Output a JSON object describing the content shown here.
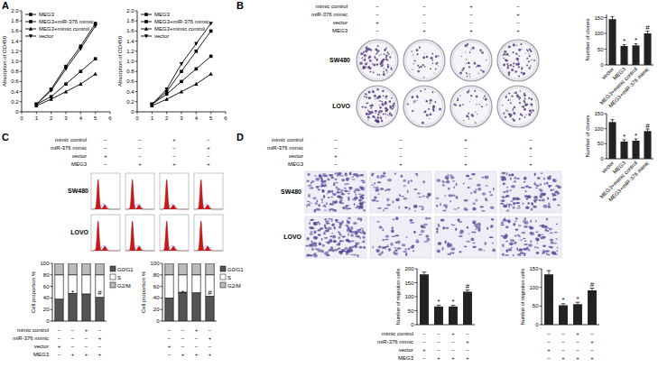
{
  "figure": {
    "panel_labels": [
      "A",
      "B",
      "C",
      "D"
    ],
    "cell_lines": [
      "SW480",
      "LOVO"
    ],
    "conditions": {
      "rows": [
        "mimic control",
        "miR-376 mimic",
        "vector",
        "MEG3"
      ],
      "cells": [
        [
          "−",
          "−",
          "+",
          "−"
        ],
        [
          "−",
          "−",
          "−",
          "+"
        ],
        [
          "+",
          "−",
          "−",
          "−"
        ],
        [
          "−",
          "+",
          "+",
          "+"
        ]
      ]
    }
  },
  "chart_data": [
    {
      "type": "line",
      "x": [
        1,
        2,
        3,
        4,
        5
      ],
      "xlim": [
        0,
        6
      ],
      "xticks": [
        0,
        1,
        2,
        3,
        4,
        5,
        6
      ],
      "ylim": [
        0,
        2
      ],
      "yticks": [
        0,
        0.2,
        0.4,
        0.6,
        0.8,
        {
          "value": 1,
          "label": "1.0"
        },
        1.2,
        1.4,
        1.6,
        1.8,
        {
          "value": 2,
          "label": "2.0"
        }
      ],
      "y_label": "Absorption of OD450",
      "legend": "upper left",
      "series": [
        {
          "name": "MEG3",
          "color": "#000000",
          "marker": "square",
          "values": [
            0.15,
            0.3,
            0.55,
            0.8,
            1.05
          ]
        },
        {
          "name": "MEG3+miR-376 mimic",
          "color": "#000000",
          "marker": "square",
          "values": [
            0.15,
            0.45,
            0.9,
            1.3,
            1.75
          ]
        },
        {
          "name": "MEG3+mimic control",
          "color": "#000000",
          "marker": "triangle",
          "values": [
            0.12,
            0.25,
            0.4,
            0.55,
            0.75
          ]
        },
        {
          "name": "vector",
          "color": "#000000",
          "marker": "triangle-down",
          "values": [
            0.15,
            0.42,
            0.85,
            1.25,
            1.7
          ]
        }
      ]
    },
    {
      "type": "line",
      "x": [
        1,
        2,
        3,
        4,
        5
      ],
      "xlim": [
        0,
        6
      ],
      "xticks": [
        0,
        1,
        2,
        3,
        4,
        5,
        6
      ],
      "ylim": [
        0,
        2
      ],
      "yticks": [
        0,
        0.2,
        0.4,
        0.6,
        0.8,
        {
          "value": 1,
          "label": "1.0"
        },
        1.2,
        1.4,
        1.6,
        1.8,
        {
          "value": 2,
          "label": "2.0"
        }
      ],
      "y_label": "Absorption of OD450",
      "legend": "upper left",
      "series": [
        {
          "name": "MEG3",
          "color": "#000000",
          "marker": "square",
          "values": [
            0.15,
            0.35,
            0.6,
            0.85,
            1.1
          ]
        },
        {
          "name": "MEG3+miR-376 mimic",
          "color": "#000000",
          "marker": "square",
          "values": [
            0.15,
            0.4,
            0.8,
            1.2,
            1.6
          ]
        },
        {
          "name": "MEG3+mimic control",
          "color": "#000000",
          "marker": "triangle",
          "values": [
            0.12,
            0.25,
            0.4,
            0.55,
            0.75
          ]
        },
        {
          "name": "vector",
          "color": "#000000",
          "marker": "triangle-down",
          "values": [
            0.15,
            0.45,
            0.95,
            1.35,
            1.75
          ]
        }
      ]
    },
    {
      "type": "bar",
      "categories": [
        "vector",
        "MEG3",
        "MEG3+mimic control",
        "MEG3+miR-376 mimic"
      ],
      "values": [
        145,
        60,
        62,
        100
      ],
      "errors": [
        8,
        4,
        5,
        7
      ],
      "annotations": [
        null,
        "*",
        "*",
        "#"
      ],
      "color": "#222222",
      "ylim": [
        0,
        160
      ],
      "yticks": [
        0,
        50,
        100,
        150
      ],
      "y_label": "Number of clones"
    },
    {
      "type": "bar",
      "categories": [
        "vector",
        "MEG3",
        "MEG3+mimic control",
        "MEG3+miR-376 mimic"
      ],
      "values": [
        122,
        57,
        60,
        92
      ],
      "errors": [
        8,
        6,
        6,
        7
      ],
      "annotations": [
        null,
        "*",
        "*",
        "#"
      ],
      "color": "#222222",
      "ylim": [
        0,
        150
      ],
      "yticks": [
        0,
        50,
        100,
        150
      ],
      "y_label": "Number of clones"
    },
    {
      "type": "bar",
      "stacked": true,
      "legend": "right",
      "categories": [
        null,
        null,
        null,
        null
      ],
      "series": [
        {
          "name": "G0/G1",
          "color": "#555555",
          "values": [
            38,
            48,
            47,
            41
          ]
        },
        {
          "name": "S",
          "color": "#ffffff",
          "values": [
            42,
            32,
            33,
            39
          ]
        },
        {
          "name": "G2/M",
          "color": "#bbbbbb",
          "values": [
            20,
            20,
            20,
            20
          ]
        }
      ],
      "annotations": [
        null,
        "*",
        null,
        "#"
      ],
      "ylim": [
        0,
        100
      ],
      "yticks": [
        0,
        20,
        40,
        60,
        80,
        100
      ],
      "y_label": "Cell proportion %"
    },
    {
      "type": "bar",
      "stacked": true,
      "legend": "right",
      "categories": [
        null,
        null,
        null,
        null
      ],
      "series": [
        {
          "name": "G0/G1",
          "color": "#555555",
          "values": [
            40,
            50,
            49,
            43
          ]
        },
        {
          "name": "S",
          "color": "#ffffff",
          "values": [
            40,
            30,
            31,
            37
          ]
        },
        {
          "name": "G2/M",
          "color": "#bbbbbb",
          "values": [
            20,
            20,
            20,
            20
          ]
        }
      ],
      "annotations": [
        null,
        "*",
        null,
        "#"
      ],
      "ylim": [
        0,
        100
      ],
      "yticks": [
        0,
        20,
        40,
        60,
        80,
        100
      ],
      "y_label": "Cell proportion %"
    },
    {
      "type": "bar",
      "categories": [
        null,
        null,
        null,
        null
      ],
      "values": [
        180,
        65,
        65,
        118
      ],
      "errors": [
        8,
        5,
        4,
        6
      ],
      "annotations": [
        null,
        "*",
        "*",
        "#"
      ],
      "color": "#222222",
      "ylim": [
        0,
        200
      ],
      "yticks": [
        0,
        50,
        100,
        150,
        200
      ],
      "y_label": "Number of migration cells"
    },
    {
      "type": "bar",
      "categories": [
        null,
        null,
        null,
        null
      ],
      "values": [
        135,
        52,
        55,
        92
      ],
      "errors": [
        10,
        4,
        5,
        6
      ],
      "annotations": [
        null,
        "*",
        "*",
        "#"
      ],
      "color": "#222222",
      "ylim": [
        0,
        150
      ],
      "yticks": [
        0,
        50,
        100,
        150
      ],
      "y_label": "Number of migration cells"
    }
  ]
}
